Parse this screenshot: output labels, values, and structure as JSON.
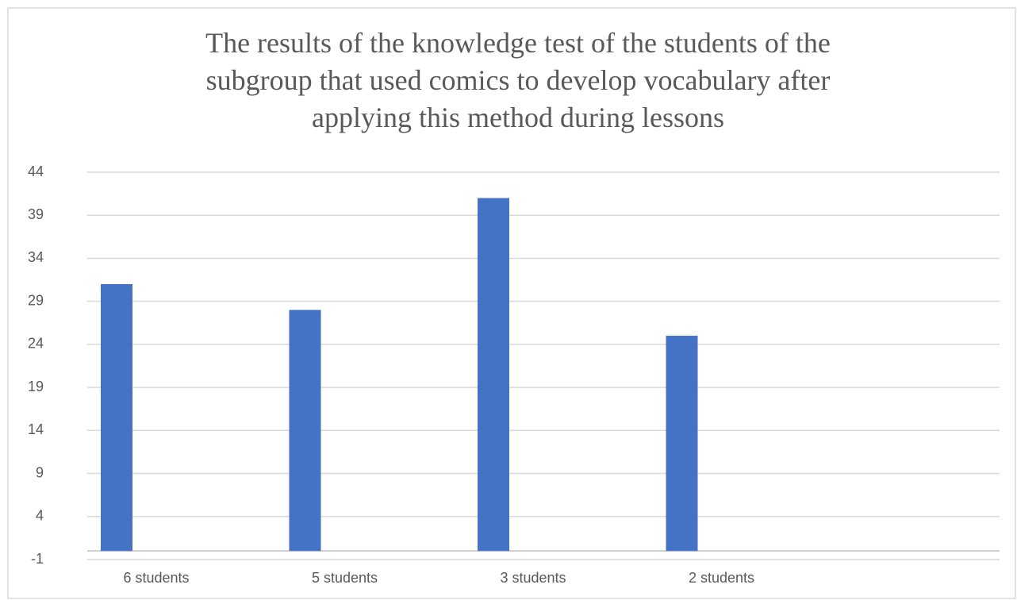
{
  "chart_data": {
    "type": "bar",
    "title": [
      "The results of the knowledge test of the students of the",
      "subgroup that used comics to develop vocabulary after",
      "applying this method during lessons"
    ],
    "categories": [
      "6 students",
      "5 students",
      "3 students",
      "2 students"
    ],
    "values": [
      31,
      28,
      41,
      25
    ],
    "color": "#4472c4",
    "ylim": [
      -1,
      44
    ],
    "yticks": [
      -1,
      4,
      9,
      14,
      19,
      24,
      29,
      34,
      39,
      44
    ],
    "grid": true
  }
}
